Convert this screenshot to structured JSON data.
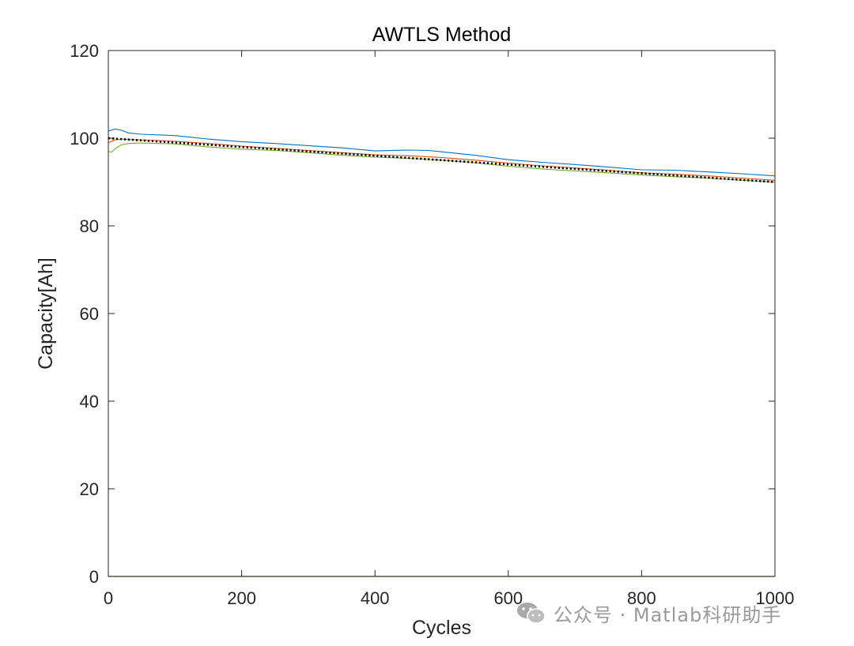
{
  "chart_data": {
    "type": "line",
    "title": "AWTLS Method",
    "xlabel": "Cycles",
    "ylabel": "Capacity[Ah]",
    "xlim": [
      0,
      1000
    ],
    "ylim": [
      0,
      120
    ],
    "xticks": [
      "0",
      "200",
      "400",
      "600",
      "800",
      "1000"
    ],
    "yticks": [
      "0",
      "20",
      "40",
      "60",
      "80",
      "100",
      "120"
    ],
    "grid": false,
    "legend": "none",
    "series": [
      {
        "color": "#0072BD",
        "style": "solid",
        "x": [
          0,
          10,
          20,
          30,
          50,
          100,
          150,
          200,
          250,
          300,
          350,
          400,
          450,
          480,
          500,
          550,
          600,
          650,
          700,
          750,
          800,
          850,
          900,
          950,
          1000
        ],
        "y": [
          101.6,
          102.1,
          101.8,
          101.2,
          100.9,
          100.6,
          99.8,
          99.2,
          98.8,
          98.3,
          97.8,
          97.1,
          97.3,
          97.2,
          96.9,
          96.1,
          95.1,
          94.5,
          94.0,
          93.4,
          92.8,
          92.7,
          92.3,
          91.9,
          91.4
        ]
      },
      {
        "color": "#D95319",
        "style": "solid",
        "x": [
          0,
          10,
          20,
          30,
          50,
          100,
          150,
          200,
          250,
          300,
          350,
          400,
          450,
          500,
          550,
          600,
          650,
          700,
          750,
          800,
          850,
          900,
          950,
          1000
        ],
        "y": [
          99.0,
          99.6,
          99.8,
          99.7,
          99.6,
          99.3,
          98.8,
          98.2,
          97.7,
          97.2,
          96.7,
          96.2,
          96.0,
          95.6,
          95.0,
          94.3,
          93.7,
          93.2,
          92.7,
          92.1,
          91.8,
          91.4,
          90.9,
          90.4
        ]
      },
      {
        "color": "#77AC30",
        "style": "solid",
        "x": [
          0,
          5,
          10,
          20,
          30,
          50,
          100,
          150,
          200,
          250,
          300,
          350,
          400,
          450,
          500,
          550,
          600,
          650,
          700,
          750,
          800,
          850,
          900,
          950,
          1000
        ],
        "y": [
          97.0,
          96.8,
          97.6,
          98.5,
          98.8,
          98.9,
          98.7,
          98.0,
          97.5,
          97.2,
          96.7,
          96.1,
          95.7,
          95.4,
          95.0,
          94.4,
          93.6,
          93.0,
          92.5,
          92.1,
          91.6,
          91.2,
          90.9,
          90.4,
          90.0
        ]
      },
      {
        "color": "#000000",
        "style": "dotted",
        "x": [
          0,
          1000
        ],
        "y": [
          100.0,
          90.0
        ]
      },
      {
        "color": "#77AC30",
        "style": "solid",
        "x": [
          0,
          1000
        ],
        "y": [
          0.05,
          0.05
        ]
      }
    ]
  },
  "watermark": {
    "icon": "wechat-icon",
    "text": "公众号 · Matlab科研助手"
  }
}
